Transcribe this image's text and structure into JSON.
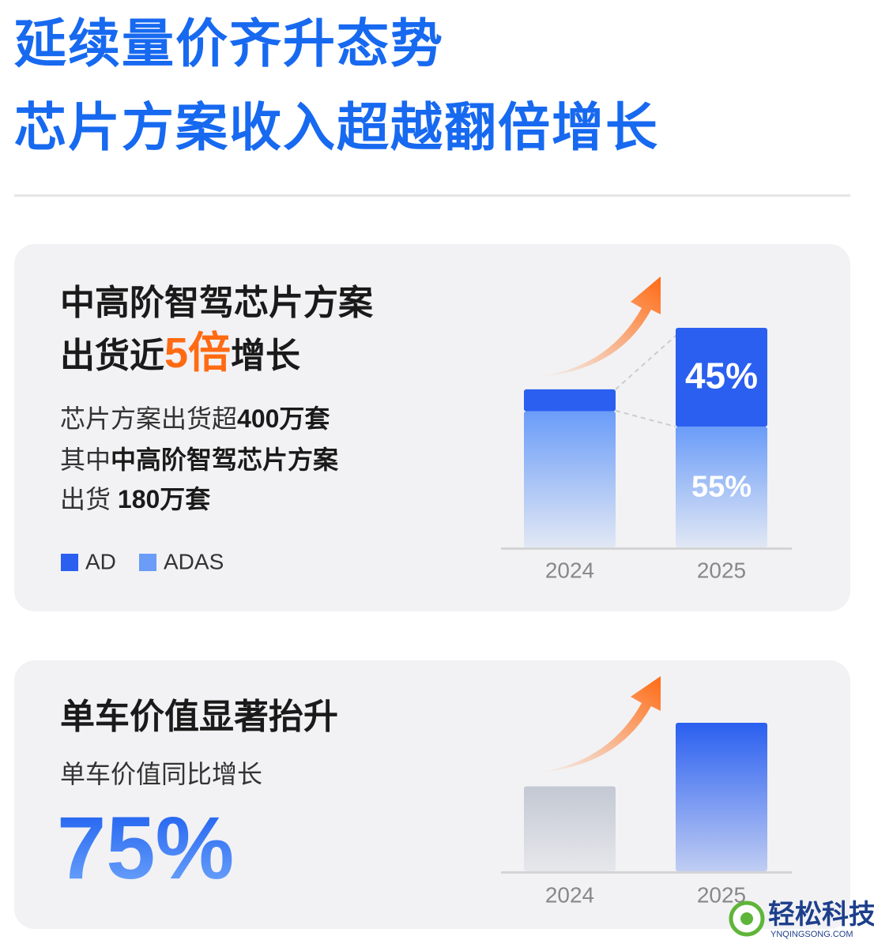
{
  "title_lines": [
    "延续量价齐升态势",
    "芯片方案收入超越翻倍增长"
  ],
  "card1": {
    "heading": [
      [
        {
          "text": "中高阶智驾芯片方案"
        }
      ],
      [
        {
          "text": "出货近"
        },
        {
          "text": "5倍",
          "accent": true
        },
        {
          "text": "增长"
        }
      ]
    ],
    "body": [
      [
        {
          "text": "芯片方案出货超"
        },
        {
          "text": "400万套",
          "bold": true
        }
      ],
      [
        {
          "text": "其中"
        },
        {
          "text": "中高阶智驾芯片方案",
          "bold": true
        }
      ],
      [
        {
          "text": "出货 "
        },
        {
          "text": "180万套",
          "bold": true
        }
      ]
    ]
  },
  "card2": {
    "heading": "单车价值显著抬升",
    "subheading": "单车价值同比增长",
    "highlight": "75%"
  },
  "chart_data": [
    {
      "type": "stacked_bar",
      "categories": [
        "2024",
        "2025"
      ],
      "ylim": [
        0,
        110
      ],
      "series": [
        {
          "name": "AD",
          "color": "#2a5ff0",
          "values": [
            10,
            45
          ],
          "value_labels": [
            null,
            "45%"
          ]
        },
        {
          "name": "ADAS",
          "color": "#6a9cf8",
          "values": [
            62,
            55
          ],
          "value_labels": [
            null,
            "55%"
          ]
        }
      ]
    },
    {
      "type": "bar",
      "categories": [
        "2024",
        "2025"
      ],
      "ylim": [
        0,
        200
      ],
      "values": [
        100,
        175
      ],
      "colors": [
        "#c3c8d3",
        "#2a5ff0"
      ]
    }
  ],
  "watermark": {
    "brand": "轻松科技",
    "site": "YNQINGSONG.COM"
  }
}
